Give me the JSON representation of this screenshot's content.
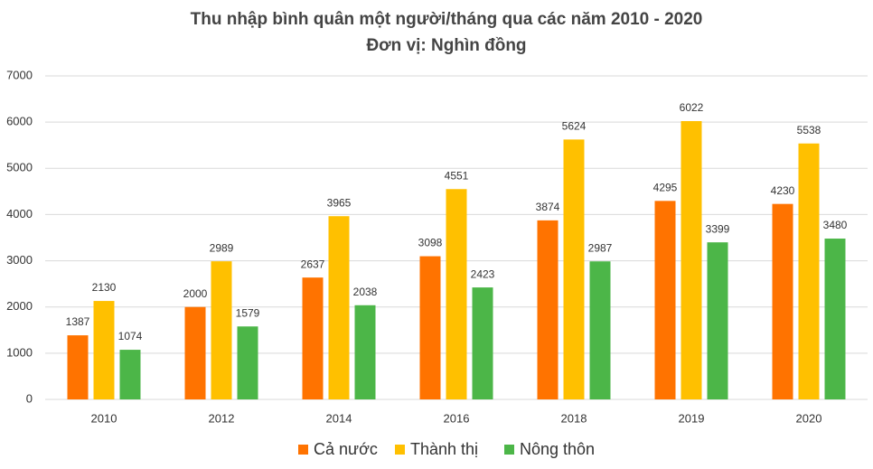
{
  "chart_data": {
    "type": "bar",
    "title": "Thu nhập bình quân một người/tháng qua các năm 2010 - 2020",
    "subtitle": "Đơn vị: Nghìn đồng",
    "categories": [
      "2010",
      "2012",
      "2014",
      "2016",
      "2018",
      "2019",
      "2020"
    ],
    "series": [
      {
        "name": "Cả nước",
        "color": "#ff7300",
        "values": [
          1387,
          2000,
          2637,
          3098,
          3874,
          4295,
          4230
        ]
      },
      {
        "name": "Thành thị",
        "color": "#ffc000",
        "values": [
          2130,
          2989,
          3965,
          4551,
          5624,
          6022,
          5538
        ]
      },
      {
        "name": "Nông thôn",
        "color": "#4cb648",
        "values": [
          1074,
          1579,
          2038,
          2423,
          2987,
          3399,
          3480
        ]
      }
    ],
    "ylim": [
      0,
      7000
    ],
    "yticks": [
      0,
      1000,
      2000,
      3000,
      4000,
      5000,
      6000,
      7000
    ],
    "grid": true,
    "legend": "bottom"
  }
}
